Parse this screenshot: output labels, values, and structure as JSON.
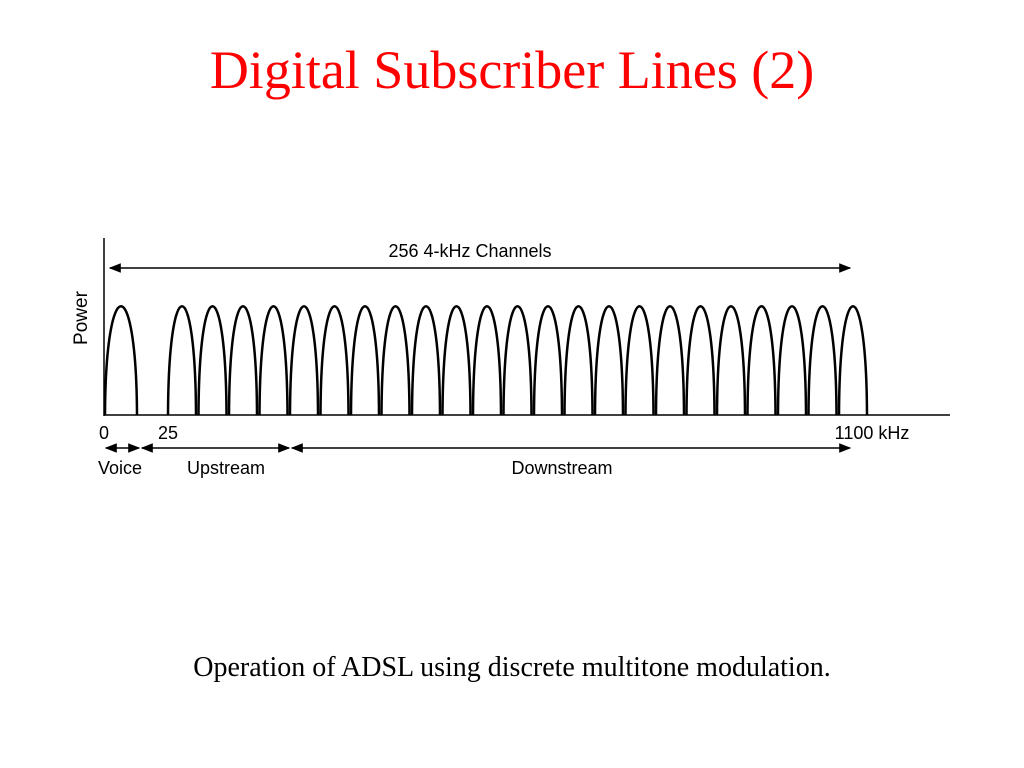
{
  "slide": {
    "title": "Digital Subscriber Lines (2)",
    "caption": "Operation of ADSL using discrete multitone modulation.",
    "title_color": "#ff0000",
    "text_color": "#000000"
  },
  "diagram": {
    "channels_label": "256 4-kHz Channels",
    "y_axis_label": "Power",
    "ticks": {
      "zero": "0",
      "twenty_five": "25",
      "end": "1100 kHz"
    },
    "bands": {
      "voice": "Voice",
      "upstream": "Upstream",
      "downstream": "Downstream"
    },
    "voice_humps": 1,
    "data_humps": 23
  }
}
